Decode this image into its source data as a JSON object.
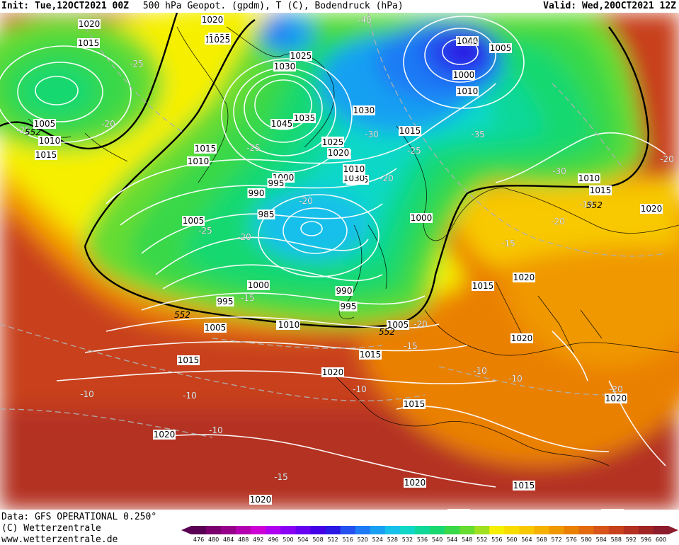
{
  "header": {
    "init": "Init: Tue,12OCT2021 00Z",
    "title": "500 hPa Geopot. (gpdm), T (C), Bodendruck (hPa)",
    "valid": "Valid: Wed,20OCT2021 12Z"
  },
  "footer": {
    "data_line": "Data: GFS OPERATIONAL 0.250°",
    "copyright": "(C) Wetterzentrale",
    "website": "www.wetterzentrale.de"
  },
  "colorbar": {
    "ticks": [
      "476",
      "480",
      "484",
      "488",
      "492",
      "496",
      "500",
      "504",
      "508",
      "512",
      "516",
      "520",
      "524",
      "528",
      "532",
      "536",
      "540",
      "544",
      "548",
      "552",
      "556",
      "560",
      "564",
      "568",
      "572",
      "576",
      "580",
      "584",
      "588",
      "592",
      "596",
      "600"
    ],
    "colors": [
      "#5a0054",
      "#7a006e",
      "#96008a",
      "#b400b0",
      "#cd00d6",
      "#b000f0",
      "#8a00f4",
      "#6600f0",
      "#4400e6",
      "#2a18e4",
      "#2450f0",
      "#1f7af5",
      "#19a0f2",
      "#16c0ea",
      "#10d8c8",
      "#10d898",
      "#18d870",
      "#38d848",
      "#66dc30",
      "#a0e020",
      "#f6f000",
      "#f8dc00",
      "#f8c800",
      "#f6b000",
      "#f09800",
      "#ea8000",
      "#e46a10",
      "#d85418",
      "#c8401c",
      "#b43020",
      "#a02424",
      "#8c1c2c"
    ]
  },
  "pressure_labels": [
    "1020",
    "1020",
    "1025",
    "1015",
    "1025",
    "1030",
    "1025",
    "1005",
    "1000",
    "1010",
    "1040",
    "1035",
    "1030",
    "1045",
    "1005",
    "1010",
    "1015",
    "1015",
    "1020",
    "1025",
    "1020",
    "1010",
    "1015",
    "1020",
    "1010",
    "1005",
    "1030",
    "1010",
    "1025",
    "1025",
    "995",
    "1000",
    "1020",
    "1010",
    "1015",
    "1000",
    "990",
    "985",
    "1005",
    "1000",
    "1010",
    "990",
    "995",
    "995",
    "1015",
    "1005",
    "1005",
    "1010",
    "1015",
    "1020",
    "1015",
    "1020",
    "1020",
    "1015",
    "1020",
    "1020",
    "1020",
    "1015",
    "1015",
    "1015",
    "1000"
  ],
  "temp_labels": [
    "-40",
    "-40",
    "-25",
    "-20",
    "-25",
    "-30",
    "-25",
    "-35",
    "-25",
    "-20",
    "-20",
    "-20",
    "-25",
    "-20",
    "-30",
    "-20",
    "-15",
    "-15",
    "-20",
    "-15",
    "-10",
    "-10",
    "-10",
    "-10",
    "-10",
    "-10",
    "-15",
    "-20",
    "-10"
  ],
  "height_labels": [
    "552",
    "552",
    "552",
    "552"
  ]
}
